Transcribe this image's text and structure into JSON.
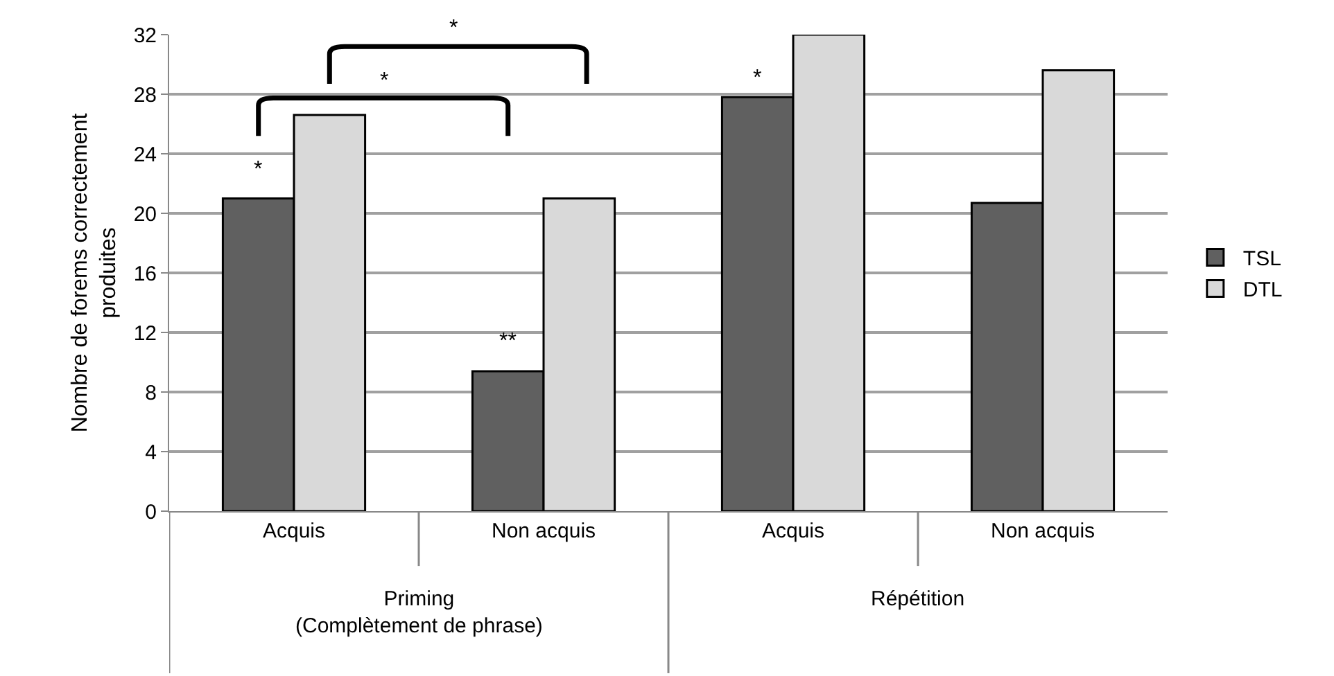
{
  "chart_data": {
    "type": "bar",
    "ylabel": "Nombre de forems correctement produites",
    "categories": [
      "Acquis",
      "Non acquis",
      "Acquis",
      "Non acquis"
    ],
    "series": [
      {
        "name": "TSL",
        "color": "#606060",
        "values": [
          21,
          9.4,
          27.8,
          20.7
        ]
      },
      {
        "name": "DTL",
        "color": "#d9d9d9",
        "values": [
          26.6,
          21,
          32,
          29.6
        ]
      }
    ],
    "ylim": [
      0,
      32
    ],
    "yticks": [
      0,
      4,
      8,
      12,
      16,
      20,
      24,
      28,
      32
    ],
    "grid": "y",
    "legend": "right",
    "annotations": [
      "*",
      "**",
      "*",
      "*",
      "*",
      "Priming\n(Complètement de phrase)",
      "Répétition"
    ]
  }
}
